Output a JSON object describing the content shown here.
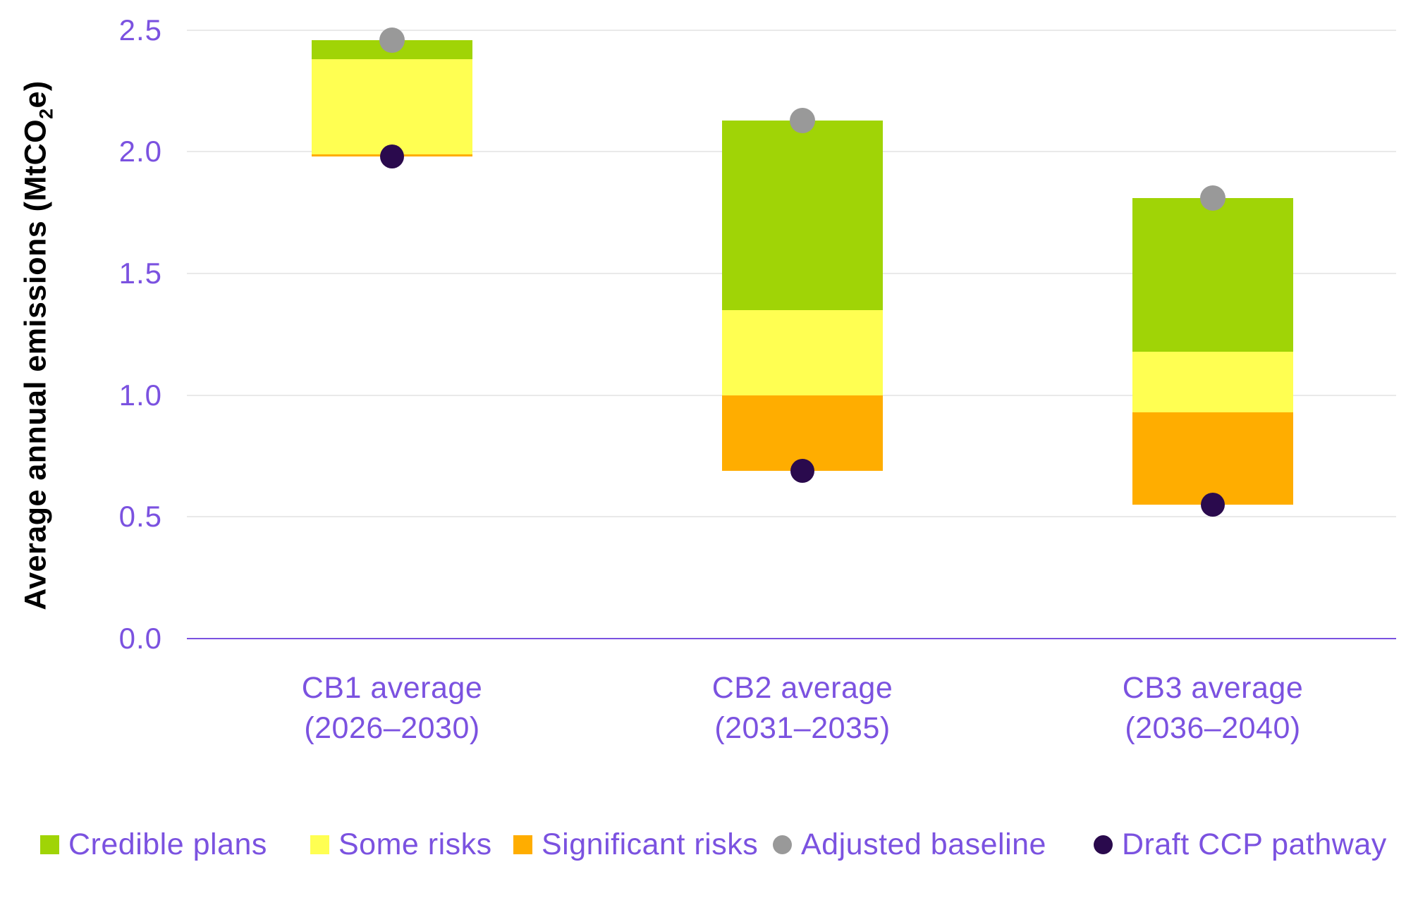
{
  "colors": {
    "text_purple": "#7B52E0",
    "gridline_gray": "#E9E9E9",
    "axis_line_purple": "#7B52E0",
    "background": "#FFFFFF",
    "credible_plans_green": "#A0D406",
    "some_risks_yellow": "#FFFF52",
    "significant_risks_orange": "#FFAD00",
    "adjusted_baseline_gray": "#999999",
    "draft_ccp_dark_purple": "#2A0A4D"
  },
  "chart_data": {
    "type": "bar",
    "subtype": "floating-stacked-range-with-points",
    "title": "",
    "xlabel": "",
    "ylabel": "Average annual emissions (MtCO₂e)",
    "ylabel_parts": {
      "pre": "Average annual emissions (MtCO",
      "sub": "2",
      "post": "e)"
    },
    "ylim": [
      0,
      2.5
    ],
    "ytick_values": [
      0.0,
      0.5,
      1.0,
      1.5,
      2.0,
      2.5
    ],
    "ytick_labels": [
      "0.0",
      "0.5",
      "1.0",
      "1.5",
      "2.0",
      "2.5"
    ],
    "grid": "horizontal",
    "legend_position": "bottom",
    "categories": [
      {
        "id": "cb1",
        "lines": [
          "CB1 average",
          "(2026–2030)"
        ]
      },
      {
        "id": "cb2",
        "lines": [
          "CB2 average",
          "(2031–2035)"
        ]
      },
      {
        "id": "cb3",
        "lines": [
          "CB3 average",
          "(2036–2040)"
        ]
      }
    ],
    "series": [
      {
        "id": "significant-risks",
        "name": "Significant risks",
        "type": "bar",
        "color": "#FFAD00",
        "ranges": [
          [
            1.98,
            1.99
          ],
          [
            0.69,
            1.0
          ],
          [
            0.55,
            0.93
          ]
        ]
      },
      {
        "id": "some-risks",
        "name": "Some risks",
        "type": "bar",
        "color": "#FFFF52",
        "ranges": [
          [
            1.99,
            2.38
          ],
          [
            1.0,
            1.35
          ],
          [
            0.93,
            1.18
          ]
        ]
      },
      {
        "id": "credible-plans",
        "name": "Credible plans",
        "type": "bar",
        "color": "#A0D406",
        "ranges": [
          [
            2.38,
            2.46
          ],
          [
            1.35,
            2.13
          ],
          [
            1.18,
            1.81
          ]
        ]
      },
      {
        "id": "adjusted-baseline",
        "name": "Adjusted baseline",
        "type": "point",
        "color": "#999999",
        "values": [
          2.46,
          2.13,
          1.81
        ],
        "dot_diameter": 36
      },
      {
        "id": "draft-ccp-pathway",
        "name": "Draft CCP pathway",
        "type": "point",
        "color": "#2A0A4D",
        "values": [
          1.98,
          0.69,
          0.55
        ],
        "dot_diameter": 34
      }
    ],
    "legend": [
      {
        "id": "credible-plans",
        "label": "Credible plans",
        "shape": "square",
        "color": "#A0D406"
      },
      {
        "id": "some-risks",
        "label": "Some risks",
        "shape": "square",
        "color": "#FFFF52"
      },
      {
        "id": "significant-risks",
        "label": "Significant risks",
        "shape": "square",
        "color": "#FFAD00"
      },
      {
        "id": "adjusted-baseline",
        "label": "Adjusted baseline",
        "shape": "circle",
        "color": "#999999"
      },
      {
        "id": "draft-ccp-pathway",
        "label": "Draft CCP pathway",
        "shape": "circle",
        "color": "#2A0A4D"
      }
    ]
  }
}
